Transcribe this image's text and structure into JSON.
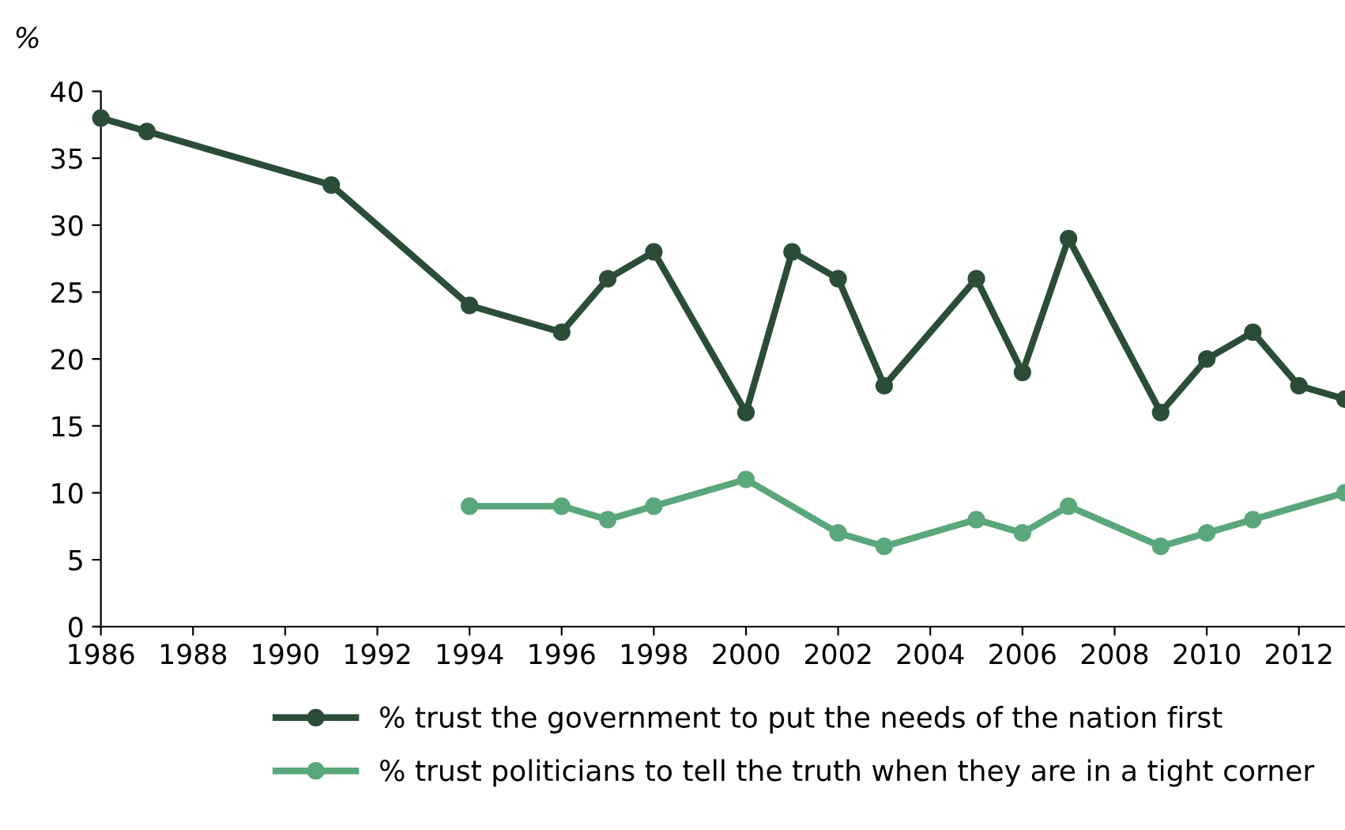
{
  "chart_data": {
    "type": "line",
    "ylabel": "%",
    "xlim": [
      1986,
      2013
    ],
    "xticks": [
      1986,
      1988,
      1990,
      1992,
      1994,
      1996,
      1998,
      2000,
      2002,
      2004,
      2006,
      2008,
      2010,
      2012
    ],
    "ylim": [
      0,
      40
    ],
    "yticks": [
      0,
      5,
      10,
      15,
      20,
      25,
      30,
      35,
      40
    ],
    "grid": false,
    "legend": "bottom",
    "marker": "circle",
    "line_style": "solid",
    "series": [
      {
        "name": "% trust the government to put the needs of the nation first",
        "color": "#2b4d38",
        "x": [
          1986,
          1987,
          1991,
          1994,
          1996,
          1997,
          1998,
          2000,
          2001,
          2002,
          2003,
          2005,
          2006,
          2007,
          2009,
          2010,
          2011,
          2012,
          2013
        ],
        "values": [
          38,
          37,
          33,
          24,
          22,
          26,
          28,
          16,
          28,
          26,
          18,
          26,
          19,
          29,
          16,
          20,
          22,
          18,
          17
        ]
      },
      {
        "name": "% trust politicians to tell the truth when they are in a tight corner",
        "color": "#5aa77c",
        "x": [
          1994,
          1996,
          1997,
          1998,
          2000,
          2002,
          2003,
          2005,
          2006,
          2007,
          2009,
          2010,
          2011,
          2013
        ],
        "values": [
          9,
          9,
          8,
          9,
          11,
          7,
          6,
          8,
          7,
          9,
          6,
          7,
          8,
          10
        ]
      }
    ]
  }
}
